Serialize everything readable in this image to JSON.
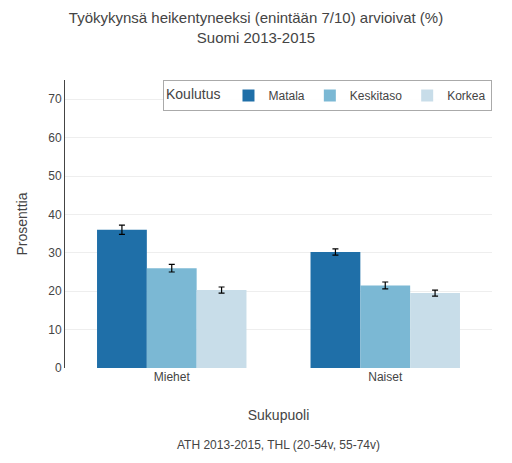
{
  "chart_data": {
    "type": "bar",
    "title": "Työkykynsä heikentyneeksi (enintään 7/10) arvioivat (%)\nSuomi 2013-2015",
    "xlabel": "Sukupuoli",
    "ylabel": "Prosenttia",
    "annotations": [
      "ATH 2013-2015, THL (20-54v, 55-74v)"
    ],
    "legend_title": "Koulutus",
    "categories": [
      "Miehet",
      "Naiset"
    ],
    "series": [
      {
        "name": "Matala",
        "color": "#1F6FA8",
        "values": [
          36.0,
          30.2
        ],
        "errors": [
          1.2,
          0.8
        ]
      },
      {
        "name": "Keskitaso",
        "color": "#7BB8D4",
        "values": [
          26.0,
          21.5
        ],
        "errors": [
          1.0,
          0.9
        ]
      },
      {
        "name": "Korkea",
        "color": "#C8DDE9",
        "values": [
          20.3,
          19.5
        ],
        "errors": [
          0.8,
          0.8
        ]
      }
    ],
    "ylim": [
      0,
      75
    ],
    "yticks": [
      0,
      10,
      20,
      30,
      40,
      50,
      60,
      70
    ],
    "grid": true,
    "legend": "upper right"
  }
}
